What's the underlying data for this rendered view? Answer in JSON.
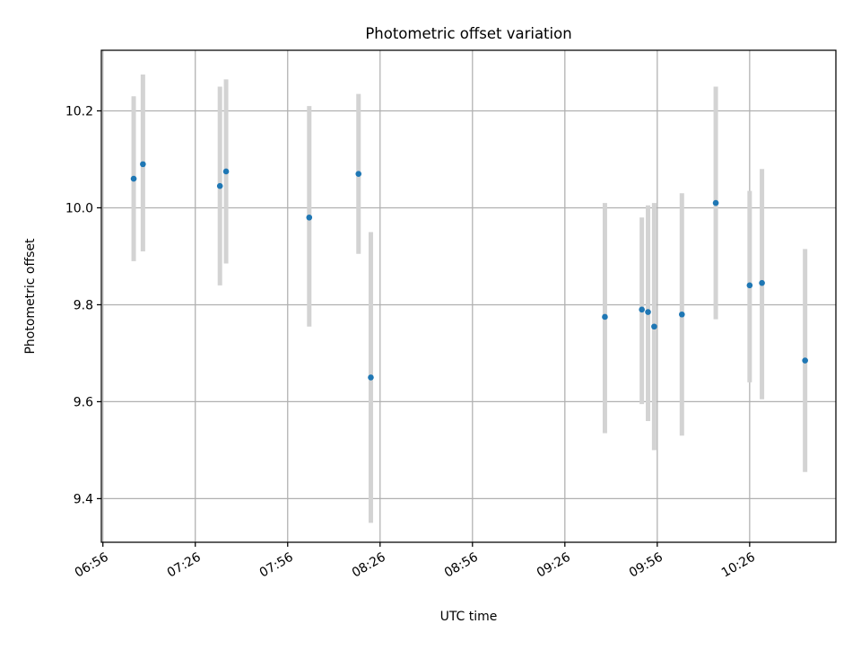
{
  "chart_data": {
    "type": "scatter",
    "title": "Photometric offset variation",
    "xlabel": "UTC time",
    "ylabel": "Photometric offset",
    "x_tick_labels": [
      "06:56",
      "07:26",
      "07:56",
      "08:26",
      "08:56",
      "09:26",
      "09:56",
      "10:26"
    ],
    "y_tick_labels": [
      "9.4",
      "9.6",
      "9.8",
      "10.0",
      "10.2"
    ],
    "xlim": [
      "06:55:30",
      "10:54:00"
    ],
    "ylim": [
      9.31,
      10.325
    ],
    "grid": true,
    "marker_color": "#1f77b4",
    "errorbar_color": "#d3d3d3",
    "points": [
      {
        "x": "07:06",
        "y": 10.06,
        "ylow": 9.89,
        "yhigh": 10.23
      },
      {
        "x": "07:09",
        "y": 10.09,
        "ylow": 9.91,
        "yhigh": 10.275
      },
      {
        "x": "07:34",
        "y": 10.045,
        "ylow": 9.84,
        "yhigh": 10.25
      },
      {
        "x": "07:36",
        "y": 10.075,
        "ylow": 9.885,
        "yhigh": 10.265
      },
      {
        "x": "08:03",
        "y": 9.98,
        "ylow": 9.755,
        "yhigh": 10.21
      },
      {
        "x": "08:19",
        "y": 10.07,
        "ylow": 9.905,
        "yhigh": 10.235
      },
      {
        "x": "08:23",
        "y": 9.65,
        "ylow": 9.35,
        "yhigh": 9.95
      },
      {
        "x": "09:39",
        "y": 9.775,
        "ylow": 9.535,
        "yhigh": 10.01
      },
      {
        "x": "09:51",
        "y": 9.79,
        "ylow": 9.595,
        "yhigh": 9.98
      },
      {
        "x": "09:53",
        "y": 9.785,
        "ylow": 9.56,
        "yhigh": 10.005
      },
      {
        "x": "09:55",
        "y": 9.755,
        "ylow": 9.5,
        "yhigh": 10.01
      },
      {
        "x": "10:04",
        "y": 9.78,
        "ylow": 9.53,
        "yhigh": 10.03
      },
      {
        "x": "10:15",
        "y": 10.01,
        "ylow": 9.77,
        "yhigh": 10.25
      },
      {
        "x": "10:26",
        "y": 9.84,
        "ylow": 9.64,
        "yhigh": 10.035
      },
      {
        "x": "10:30",
        "y": 9.845,
        "ylow": 9.605,
        "yhigh": 10.08
      },
      {
        "x": "10:44",
        "y": 9.685,
        "ylow": 9.455,
        "yhigh": 9.915
      }
    ]
  }
}
